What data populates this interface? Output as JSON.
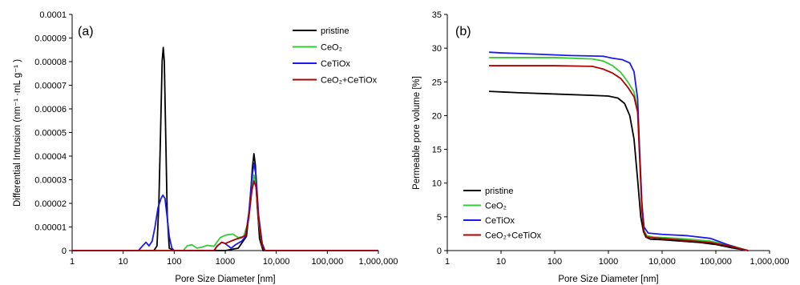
{
  "colors": {
    "pristine": "#000000",
    "CeO2": "#33cc33",
    "CeTiOx": "#1a1aee",
    "CeO2_CeTiOx": "#b00000",
    "axis": "#000000"
  },
  "chart_data": [
    {
      "type": "line",
      "panel_label": "(a)",
      "xlabel": "Pore Size Diameter [nm]",
      "ylabel": "Differential Intrusion (nm⁻¹ ·mL g⁻¹ )",
      "x_scale": "log",
      "xlim": [
        1,
        1000000
      ],
      "ylim": [
        0,
        0.0001
      ],
      "x_ticks": [
        1,
        10,
        100,
        1000,
        10000,
        100000,
        1000000
      ],
      "x_tick_labels": [
        "1",
        "10",
        "100",
        "1000",
        "10,000",
        "100,000",
        "1,000,000"
      ],
      "y_ticks": [
        0,
        1e-05,
        2e-05,
        3e-05,
        4e-05,
        5e-05,
        6e-05,
        7e-05,
        8e-05,
        9e-05,
        0.0001
      ],
      "y_tick_labels": [
        "0",
        "0.00001",
        "0.00002",
        "0.00003",
        "0.00004",
        "0.00005",
        "0.00006",
        "0.00007",
        "0.00008",
        "0.00009",
        "0.0001"
      ],
      "legend_position": "top-right",
      "series": [
        {
          "name": "pristine",
          "color_key": "pristine",
          "points": [
            [
              1,
              0
            ],
            [
              40,
              0
            ],
            [
              46,
              2e-06
            ],
            [
              50,
              2e-05
            ],
            [
              54,
              5e-05
            ],
            [
              58,
              8e-05
            ],
            [
              61,
              8.6e-05
            ],
            [
              64,
              8e-05
            ],
            [
              68,
              5e-05
            ],
            [
              73,
              1.5e-05
            ],
            [
              80,
              1e-06
            ],
            [
              100,
              0
            ],
            [
              1000,
              0
            ],
            [
              1800,
              1e-06
            ],
            [
              2600,
              6e-06
            ],
            [
              3000,
              1.8e-05
            ],
            [
              3400,
              3.5e-05
            ],
            [
              3650,
              4.1e-05
            ],
            [
              3900,
              3.6e-05
            ],
            [
              4200,
              2e-05
            ],
            [
              4700,
              5e-06
            ],
            [
              5500,
              0
            ],
            [
              1000000,
              0
            ]
          ]
        },
        {
          "name": "CeO₂",
          "color_key": "CeO2",
          "points": [
            [
              1,
              0
            ],
            [
              150,
              0
            ],
            [
              180,
              2e-06
            ],
            [
              220,
              2.5e-06
            ],
            [
              280,
              1e-06
            ],
            [
              350,
              1.5e-06
            ],
            [
              450,
              2.2e-06
            ],
            [
              600,
              1.8e-06
            ],
            [
              800,
              5.5e-06
            ],
            [
              1000,
              6.5e-06
            ],
            [
              1400,
              7e-06
            ],
            [
              1800,
              5.5e-06
            ],
            [
              2300,
              6e-06
            ],
            [
              2800,
              1.2e-05
            ],
            [
              3300,
              2.5e-05
            ],
            [
              3650,
              3.2e-05
            ],
            [
              4000,
              2.8e-05
            ],
            [
              4500,
              1.2e-05
            ],
            [
              5300,
              2e-06
            ],
            [
              6000,
              0
            ],
            [
              1000000,
              0
            ]
          ]
        },
        {
          "name": "CeTiOx",
          "color_key": "CeTiOx",
          "points": [
            [
              1,
              0
            ],
            [
              20,
              0
            ],
            [
              24,
              2e-06
            ],
            [
              28,
              3.5e-06
            ],
            [
              32,
              2e-06
            ],
            [
              37,
              4e-06
            ],
            [
              42,
              1e-05
            ],
            [
              48,
              1.8e-05
            ],
            [
              55,
              2.2e-05
            ],
            [
              60,
              2.35e-05
            ],
            [
              66,
              2.2e-05
            ],
            [
              72,
              1.5e-05
            ],
            [
              80,
              6e-06
            ],
            [
              90,
              1e-06
            ],
            [
              100,
              0
            ],
            [
              600,
              0
            ],
            [
              700,
              2e-06
            ],
            [
              850,
              3.5e-06
            ],
            [
              1000,
              3e-06
            ],
            [
              1300,
              1e-06
            ],
            [
              1600,
              2.5e-06
            ],
            [
              2100,
              4e-06
            ],
            [
              2500,
              6e-06
            ],
            [
              2900,
              1.6e-05
            ],
            [
              3300,
              3e-05
            ],
            [
              3650,
              3.7e-05
            ],
            [
              4000,
              3.2e-05
            ],
            [
              4500,
              1.5e-05
            ],
            [
              5300,
              3e-06
            ],
            [
              6000,
              0
            ],
            [
              1000000,
              0
            ]
          ]
        },
        {
          "name": "CeO₂+CeTiOx",
          "color_key": "CeO2_CeTiOx",
          "points": [
            [
              1,
              0
            ],
            [
              600,
              0
            ],
            [
              700,
              2e-06
            ],
            [
              850,
              3.5e-06
            ],
            [
              1000,
              3e-06
            ],
            [
              1300,
              4e-06
            ],
            [
              1700,
              5e-06
            ],
            [
              2100,
              5.5e-06
            ],
            [
              2500,
              6.5e-06
            ],
            [
              2900,
              1.4e-05
            ],
            [
              3300,
              2.5e-05
            ],
            [
              3650,
              2.95e-05
            ],
            [
              4000,
              2.7e-05
            ],
            [
              4500,
              1.3e-05
            ],
            [
              5300,
              2e-06
            ],
            [
              6000,
              0
            ],
            [
              1000000,
              0
            ]
          ]
        }
      ]
    },
    {
      "type": "line",
      "panel_label": "(b)",
      "xlabel": "Pore Size Diameter [nm]",
      "ylabel": "Permeable pore volume [%]",
      "x_scale": "log",
      "xlim": [
        1,
        1000000
      ],
      "ylim": [
        0,
        35
      ],
      "x_ticks": [
        1,
        10,
        100,
        1000,
        10000,
        100000,
        1000000
      ],
      "x_tick_labels": [
        "1",
        "10",
        "100",
        "1000",
        "10,000",
        "100,000",
        "1,000,000"
      ],
      "y_ticks": [
        0,
        5,
        10,
        15,
        20,
        25,
        30,
        35
      ],
      "y_tick_labels": [
        "0",
        "5",
        "10",
        "15",
        "20",
        "25",
        "30",
        "35"
      ],
      "legend_position": "bottom-left",
      "series": [
        {
          "name": "pristine",
          "color_key": "pristine",
          "points": [
            [
              6,
              23.6
            ],
            [
              20,
              23.4
            ],
            [
              100,
              23.2
            ],
            [
              500,
              23.0
            ],
            [
              1000,
              22.9
            ],
            [
              1500,
              22.6
            ],
            [
              2000,
              21.8
            ],
            [
              2500,
              20.0
            ],
            [
              3000,
              16.5
            ],
            [
              3500,
              10.5
            ],
            [
              4000,
              5.0
            ],
            [
              4500,
              2.8
            ],
            [
              5000,
              2.0
            ],
            [
              6000,
              1.7
            ],
            [
              10000,
              1.6
            ],
            [
              50000,
              1.2
            ],
            [
              100000,
              0.9
            ],
            [
              200000,
              0.4
            ],
            [
              400000,
              0
            ]
          ]
        },
        {
          "name": "CeO₂",
          "color_key": "CeO2",
          "points": [
            [
              6,
              28.6
            ],
            [
              20,
              28.6
            ],
            [
              100,
              28.6
            ],
            [
              500,
              28.4
            ],
            [
              800,
              28.1
            ],
            [
              1200,
              27.4
            ],
            [
              1700,
              26.4
            ],
            [
              2300,
              25.0
            ],
            [
              3000,
              23.5
            ],
            [
              3500,
              21.0
            ],
            [
              3800,
              15.0
            ],
            [
              4200,
              7.0
            ],
            [
              4600,
              3.0
            ],
            [
              5200,
              2.2
            ],
            [
              7000,
              2.0
            ],
            [
              20000,
              1.8
            ],
            [
              80000,
              1.4
            ],
            [
              200000,
              0.7
            ],
            [
              400000,
              0
            ]
          ]
        },
        {
          "name": "CeTiOx",
          "color_key": "CeTiOx",
          "points": [
            [
              6,
              29.4
            ],
            [
              10,
              29.3
            ],
            [
              50,
              29.1
            ],
            [
              200,
              28.9
            ],
            [
              800,
              28.8
            ],
            [
              1200,
              28.5
            ],
            [
              1800,
              28.3
            ],
            [
              2500,
              27.8
            ],
            [
              3000,
              26.5
            ],
            [
              3500,
              22.5
            ],
            [
              3800,
              15.0
            ],
            [
              4200,
              7.0
            ],
            [
              4600,
              3.5
            ],
            [
              5500,
              2.6
            ],
            [
              10000,
              2.4
            ],
            [
              30000,
              2.2
            ],
            [
              80000,
              1.8
            ],
            [
              150000,
              1.0
            ],
            [
              300000,
              0.2
            ],
            [
              400000,
              0
            ]
          ]
        },
        {
          "name": "CeO₂+CeTiOx",
          "color_key": "CeO2_CeTiOx",
          "points": [
            [
              6,
              27.4
            ],
            [
              20,
              27.4
            ],
            [
              100,
              27.4
            ],
            [
              500,
              27.3
            ],
            [
              800,
              26.9
            ],
            [
              1200,
              26.3
            ],
            [
              1700,
              25.5
            ],
            [
              2300,
              24.2
            ],
            [
              3000,
              22.8
            ],
            [
              3500,
              20.5
            ],
            [
              3800,
              14.0
            ],
            [
              4200,
              6.0
            ],
            [
              4600,
              2.8
            ],
            [
              5200,
              2.0
            ],
            [
              7000,
              1.9
            ],
            [
              20000,
              1.6
            ],
            [
              80000,
              1.2
            ],
            [
              200000,
              0.6
            ],
            [
              400000,
              0
            ]
          ]
        }
      ]
    }
  ]
}
